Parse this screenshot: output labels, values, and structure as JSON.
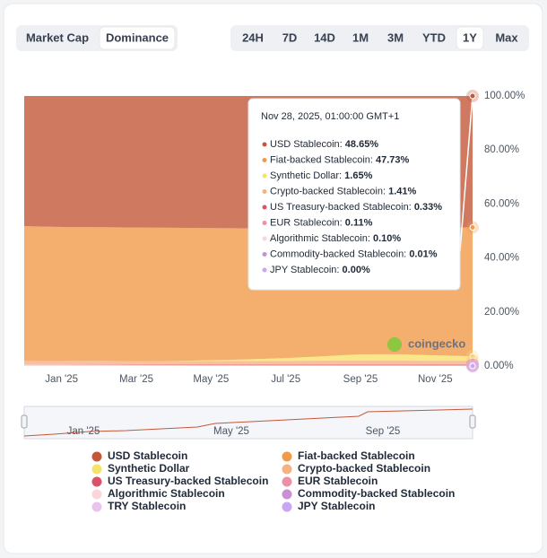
{
  "tabs": {
    "views": [
      "Market Cap",
      "Dominance"
    ],
    "ranges": [
      "24H",
      "7D",
      "14D",
      "1M",
      "3M",
      "YTD",
      "1Y",
      "Max"
    ]
  },
  "chart_data": {
    "type": "stacked-area",
    "categories": [
      null,
      "Jan '25",
      null,
      "Mar '25",
      null,
      "May '25",
      null,
      "Jul '25",
      null,
      "Sep '25",
      null,
      "Nov '25",
      null
    ],
    "ylim": [
      0,
      100
    ],
    "yticks": [
      {
        "value": 0,
        "label": "0.00%"
      },
      {
        "value": 20,
        "label": "20.00%"
      },
      {
        "value": 40,
        "label": "40.00%"
      },
      {
        "value": 60,
        "label": "60.00%"
      },
      {
        "value": 80,
        "label": "80.00%"
      },
      {
        "value": 100,
        "label": "100.00%"
      }
    ],
    "grid": false,
    "series": [
      {
        "name": "USD Stablecoin",
        "color": "#c4573a",
        "values": [
          48.2,
          48.5,
          48.6,
          48.7,
          48.8,
          48.9,
          49.0,
          49.1,
          49.2,
          49.0,
          48.9,
          48.8,
          48.65
        ]
      },
      {
        "name": "Fiat-backed Stablecoin",
        "color": "#f19a4a",
        "values": [
          49.92,
          49.64,
          49.51,
          49.5,
          49.36,
          48.96,
          48.52,
          47.97,
          47.19,
          46.67,
          46.72,
          47.24,
          47.73
        ]
      },
      {
        "name": "Synthetic Dollar",
        "color": "#f7e26a",
        "values": [
          0,
          0,
          0,
          0,
          0.05,
          0.3,
          0.6,
          1.0,
          1.6,
          2.3,
          2.4,
          2.0,
          1.65
        ]
      },
      {
        "name": "Crypto-backed Stablecoin",
        "color": "#f6b282",
        "values": [
          1.3,
          1.3,
          1.35,
          1.3,
          1.3,
          1.35,
          1.4,
          1.45,
          1.5,
          1.5,
          1.45,
          1.42,
          1.41
        ]
      },
      {
        "name": "US Treasury-backed Stablecoin",
        "color": "#d9546b",
        "values": [
          0.05,
          0.08,
          0.1,
          0.12,
          0.15,
          0.18,
          0.2,
          0.22,
          0.25,
          0.28,
          0.3,
          0.32,
          0.33
        ]
      },
      {
        "name": "EUR Stablecoin",
        "color": "#ee8fa8",
        "values": [
          0.08,
          0.08,
          0.09,
          0.09,
          0.1,
          0.1,
          0.1,
          0.1,
          0.11,
          0.11,
          0.11,
          0.11,
          0.11
        ]
      },
      {
        "name": "Algorithmic Stablecoin",
        "color": "#fbd5da",
        "values": [
          0.4,
          0.35,
          0.3,
          0.25,
          0.2,
          0.18,
          0.15,
          0.14,
          0.13,
          0.12,
          0.11,
          0.1,
          0.1
        ]
      },
      {
        "name": "Commodity-backed Stablecoin",
        "color": "#c98fd2",
        "values": [
          0.05,
          0.05,
          0.05,
          0.04,
          0.04,
          0.03,
          0.03,
          0.02,
          0.02,
          0.02,
          0.01,
          0.01,
          0.01
        ]
      },
      {
        "name": "TRY Stablecoin",
        "color": "#e8c4ee",
        "values": [
          0,
          0,
          0,
          0,
          0,
          0,
          0,
          0,
          0,
          0,
          0,
          0,
          0
        ]
      },
      {
        "name": "JPY Stablecoin",
        "color": "#c9a6f2",
        "values": [
          0,
          0,
          0,
          0,
          0,
          0,
          0,
          0,
          0,
          0,
          0,
          0,
          0
        ]
      }
    ]
  },
  "tooltip": {
    "title": "Nov 28, 2025, 01:00:00 GMT+1",
    "rows": [
      {
        "label": "USD Stablecoin:",
        "value": "48.65%"
      },
      {
        "label": "Fiat-backed Stablecoin:",
        "value": "47.73%"
      },
      {
        "label": "Synthetic Dollar:",
        "value": "1.65%"
      },
      {
        "label": "Crypto-backed Stablecoin:",
        "value": "1.41%"
      },
      {
        "label": "US Treasury-backed Stablecoin:",
        "value": "0.33%"
      },
      {
        "label": "EUR Stablecoin:",
        "value": "0.11%"
      },
      {
        "label": "Algorithmic Stablecoin:",
        "value": "0.10%"
      },
      {
        "label": "Commodity-backed Stablecoin:",
        "value": "0.01%"
      },
      {
        "label": "JPY Stablecoin:",
        "value": "0.00%"
      }
    ]
  },
  "navigator": {
    "labels": [
      "Jan '25",
      "May '25",
      "Sep '25"
    ]
  },
  "watermark": "coingecko"
}
